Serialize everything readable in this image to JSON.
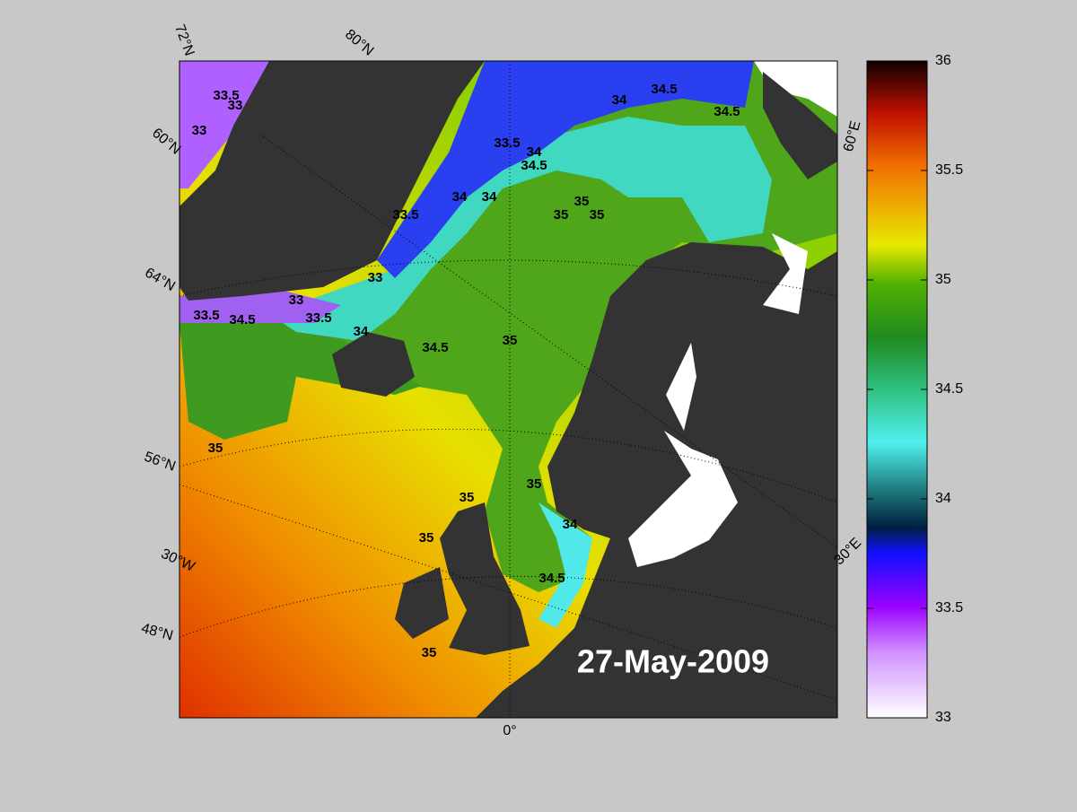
{
  "map": {
    "date_label": "27-May-2009",
    "graticule_labels": [
      "72°N",
      "80°N",
      "60°N",
      "64°N",
      "56°N",
      "30°W",
      "48°N",
      "0°",
      "30°E",
      "60°E"
    ],
    "contour_labels": [
      "33.5",
      "33",
      "33",
      "33.5",
      "34",
      "34",
      "34.5",
      "34.5",
      "33.5",
      "34",
      "34.5",
      "34",
      "35",
      "35",
      "35",
      "33.5",
      "33",
      "33.5",
      "34.5",
      "33",
      "34",
      "34.5",
      "35",
      "35",
      "35",
      "35",
      "35",
      "34.5",
      "34",
      "35"
    ]
  },
  "colorbar": {
    "lim": [
      33,
      36
    ],
    "ticks": [
      33,
      33.5,
      34,
      34.5,
      35,
      35.5,
      36
    ]
  }
}
